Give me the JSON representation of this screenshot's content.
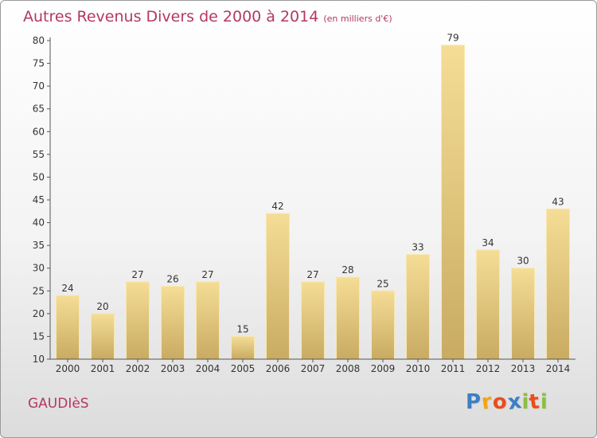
{
  "header": {
    "title": "Autres Revenus Divers de 2000 à 2014",
    "unit": "(en milliers d'€)"
  },
  "footer": {
    "commune": "GAUDIèS",
    "brand": {
      "letters": [
        "P",
        "r",
        "o",
        "x",
        "i",
        "t",
        "i"
      ],
      "colors": [
        "#3d7fc4",
        "#f2a51a",
        "#e94e1b",
        "#3d7fc4",
        "#8bbf3f",
        "#e94e1b",
        "#8bbf3f"
      ]
    }
  },
  "colors": {
    "title": "#b33863",
    "bar_light": "#f5dd96",
    "bar_dark": "#c9ab62",
    "bar_edge": "#f8e7b0"
  },
  "chart_data": {
    "type": "bar",
    "title": "Autres Revenus Divers de 2000 à 2014",
    "subtitle": "(en milliers d'€)",
    "xlabel": "",
    "ylabel": "",
    "categories": [
      "2000",
      "2001",
      "2002",
      "2003",
      "2004",
      "2005",
      "2006",
      "2007",
      "2008",
      "2009",
      "2010",
      "2011",
      "2012",
      "2013",
      "2014"
    ],
    "values": [
      24,
      20,
      27,
      26,
      27,
      15,
      42,
      27,
      28,
      25,
      33,
      79,
      34,
      30,
      43
    ],
    "ylim": [
      10,
      80
    ],
    "yticks": [
      10,
      15,
      20,
      25,
      30,
      35,
      40,
      45,
      50,
      55,
      60,
      65,
      70,
      75,
      80
    ],
    "grid": false,
    "legend": "none"
  }
}
